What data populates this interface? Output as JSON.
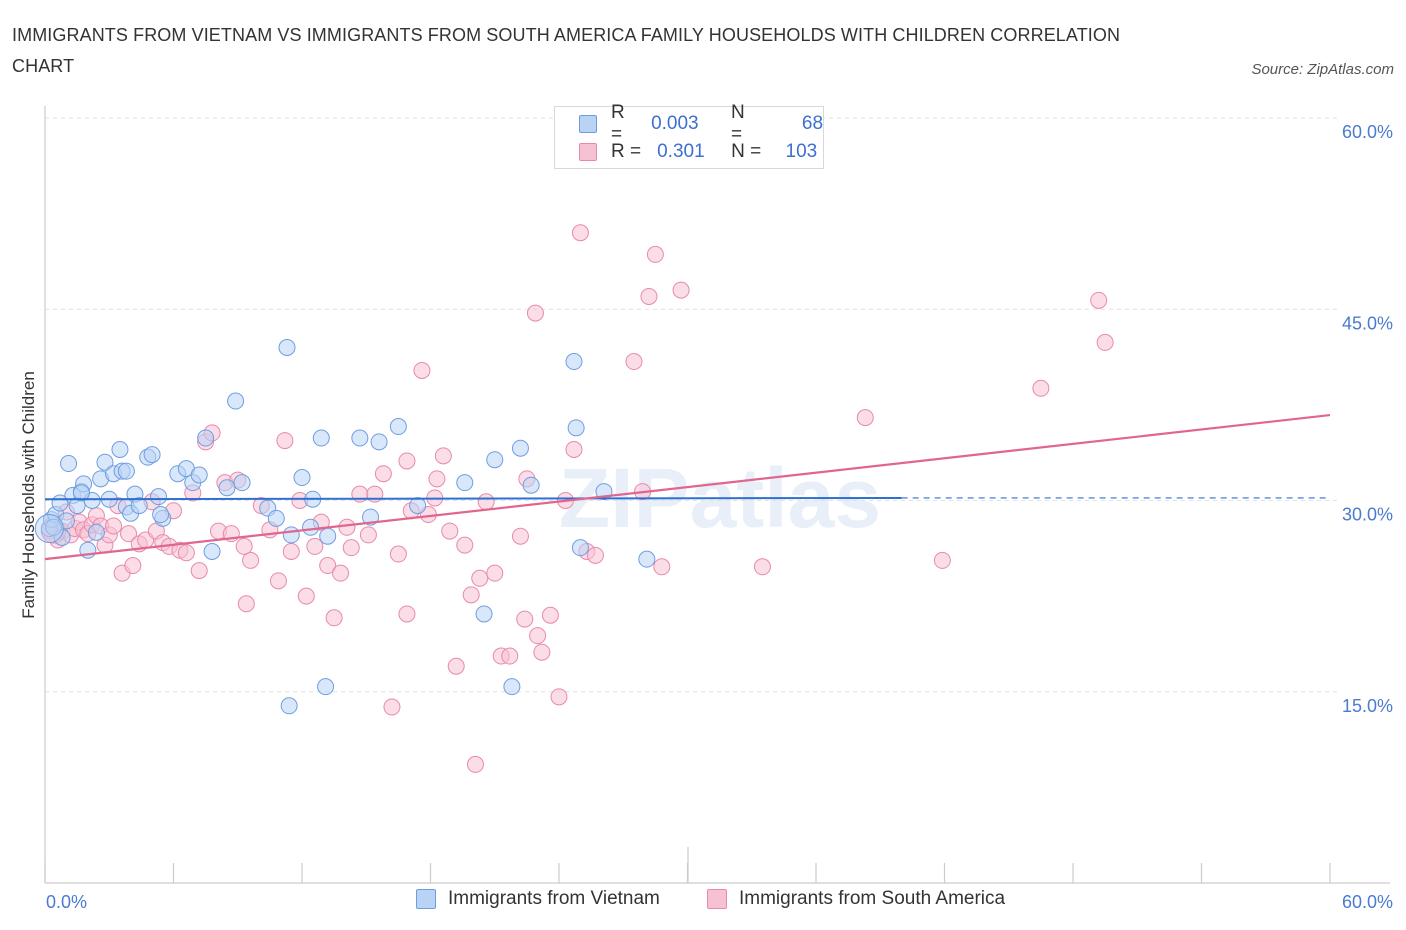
{
  "title": "IMMIGRANTS FROM VIETNAM VS IMMIGRANTS FROM SOUTH AMERICA FAMILY HOUSEHOLDS WITH CHILDREN CORRELATION CHART",
  "source": "Source: ZipAtlas.com",
  "watermark": "ZIPatlas",
  "colors": {
    "vietnam_fill": "#b9d3f5",
    "vietnam_stroke": "#6f9ee0",
    "vietnam_line": "#2f6fd0",
    "sa_fill": "#f7c1d4",
    "sa_stroke": "#e88aa9",
    "sa_line": "#e0668e",
    "tick_label": "#4a7bd0",
    "grid": "#e2e2e2"
  },
  "legend": {
    "r_label": "R =",
    "n_label": "N =",
    "vietnam_r": "0.003",
    "vietnam_n": "68",
    "sa_r": "0.301",
    "sa_n": "103"
  },
  "chart_data": {
    "type": "scatter",
    "title": "IMMIGRANTS FROM VIETNAM VS IMMIGRANTS FROM SOUTH AMERICA FAMILY HOUSEHOLDS WITH CHILDREN CORRELATION CHART",
    "xlabel": "",
    "ylabel": "Family Households with Children",
    "xlim": [
      0,
      60
    ],
    "ylim": [
      0,
      60
    ],
    "x_tick_labels": [
      "0.0%",
      "60.0%"
    ],
    "y_ticks": [
      15,
      30,
      45,
      60
    ],
    "y_tick_labels": [
      "15.0%",
      "30.0%",
      "45.0%",
      "60.0%"
    ],
    "grid": true,
    "legend_position": "top-center",
    "series": [
      {
        "name": "Immigrants from Vietnam",
        "r": 0.003,
        "n": 68,
        "trend": {
          "x0": 0,
          "y0": 30.1,
          "x1": 40,
          "y1": 30.2,
          "dashed_to_x": 60
        },
        "points": [
          [
            0.2,
            27.8
          ],
          [
            0.3,
            28.5
          ],
          [
            0.5,
            28.9
          ],
          [
            0.7,
            29.8
          ],
          [
            0.8,
            27.1
          ],
          [
            1.0,
            28.4
          ],
          [
            1.1,
            32.9
          ],
          [
            1.3,
            30.4
          ],
          [
            1.5,
            29.6
          ],
          [
            1.7,
            30.7
          ],
          [
            1.8,
            31.3
          ],
          [
            2.0,
            26.1
          ],
          [
            2.2,
            30.0
          ],
          [
            2.4,
            27.5
          ],
          [
            2.6,
            31.7
          ],
          [
            2.8,
            33.0
          ],
          [
            3.0,
            30.1
          ],
          [
            3.2,
            32.1
          ],
          [
            3.5,
            34.0
          ],
          [
            3.6,
            32.3
          ],
          [
            3.8,
            29.5
          ],
          [
            4.0,
            29.0
          ],
          [
            4.2,
            30.5
          ],
          [
            4.4,
            29.6
          ],
          [
            4.8,
            33.4
          ],
          [
            5.0,
            33.6
          ],
          [
            5.3,
            30.3
          ],
          [
            5.5,
            28.6
          ],
          [
            6.2,
            32.1
          ],
          [
            6.6,
            32.5
          ],
          [
            6.9,
            31.4
          ],
          [
            7.2,
            32.0
          ],
          [
            7.5,
            34.9
          ],
          [
            7.8,
            26.0
          ],
          [
            8.5,
            31.0
          ],
          [
            8.9,
            37.8
          ],
          [
            9.2,
            31.4
          ],
          [
            10.4,
            29.4
          ],
          [
            10.8,
            28.6
          ],
          [
            11.5,
            27.3
          ],
          [
            12.0,
            31.8
          ],
          [
            12.4,
            27.9
          ],
          [
            12.5,
            30.1
          ],
          [
            12.9,
            34.9
          ],
          [
            13.2,
            27.2
          ],
          [
            14.7,
            34.9
          ],
          [
            15.2,
            28.7
          ],
          [
            15.6,
            34.6
          ],
          [
            16.5,
            35.8
          ],
          [
            17.4,
            29.6
          ],
          [
            19.6,
            31.4
          ],
          [
            20.5,
            21.1
          ],
          [
            21.0,
            33.2
          ],
          [
            22.7,
            31.2
          ],
          [
            22.2,
            34.1
          ],
          [
            24.7,
            40.9
          ],
          [
            24.8,
            35.7
          ],
          [
            25.0,
            26.3
          ],
          [
            26.1,
            30.7
          ],
          [
            28.1,
            25.4
          ],
          [
            11.3,
            42.0
          ],
          [
            11.4,
            13.9
          ],
          [
            13.1,
            15.4
          ],
          [
            21.8,
            15.4
          ],
          [
            3.8,
            32.3
          ],
          [
            1.7,
            30.6
          ],
          [
            0.4,
            27.9
          ],
          [
            5.4,
            28.9
          ]
        ]
      },
      {
        "name": "Immigrants from South America",
        "r": 0.301,
        "n": 103,
        "trend": {
          "x0": 0,
          "y0": 25.4,
          "x1": 60,
          "y1": 36.7
        },
        "points": [
          [
            0.2,
            27.6
          ],
          [
            0.4,
            28.2
          ],
          [
            0.6,
            26.9
          ],
          [
            0.8,
            27.6
          ],
          [
            1.0,
            29.1
          ],
          [
            1.2,
            27.3
          ],
          [
            1.4,
            27.8
          ],
          [
            1.6,
            28.3
          ],
          [
            1.8,
            27.7
          ],
          [
            2.0,
            27.4
          ],
          [
            2.2,
            28.1
          ],
          [
            2.4,
            28.8
          ],
          [
            2.6,
            28.0
          ],
          [
            2.8,
            26.5
          ],
          [
            3.0,
            27.3
          ],
          [
            3.2,
            28.0
          ],
          [
            3.4,
            29.6
          ],
          [
            3.6,
            24.3
          ],
          [
            3.9,
            27.4
          ],
          [
            4.1,
            24.9
          ],
          [
            4.4,
            26.6
          ],
          [
            4.7,
            26.9
          ],
          [
            5.0,
            29.9
          ],
          [
            5.2,
            27.6
          ],
          [
            5.5,
            26.7
          ],
          [
            5.8,
            26.4
          ],
          [
            6.0,
            29.2
          ],
          [
            6.3,
            26.1
          ],
          [
            6.6,
            25.9
          ],
          [
            6.9,
            30.6
          ],
          [
            7.2,
            24.5
          ],
          [
            7.5,
            34.6
          ],
          [
            7.8,
            35.3
          ],
          [
            8.1,
            27.6
          ],
          [
            8.4,
            31.4
          ],
          [
            8.7,
            27.4
          ],
          [
            9.0,
            31.6
          ],
          [
            9.4,
            21.9
          ],
          [
            9.6,
            25.3
          ],
          [
            10.1,
            29.6
          ],
          [
            10.5,
            27.7
          ],
          [
            10.9,
            23.7
          ],
          [
            11.2,
            34.7
          ],
          [
            11.5,
            26.0
          ],
          [
            11.9,
            30.0
          ],
          [
            12.2,
            22.5
          ],
          [
            12.6,
            26.4
          ],
          [
            12.9,
            28.3
          ],
          [
            13.2,
            24.9
          ],
          [
            13.5,
            20.8
          ],
          [
            13.8,
            24.3
          ],
          [
            14.3,
            26.3
          ],
          [
            14.7,
            30.5
          ],
          [
            15.1,
            27.3
          ],
          [
            15.4,
            30.5
          ],
          [
            15.8,
            32.1
          ],
          [
            16.2,
            13.8
          ],
          [
            16.5,
            25.8
          ],
          [
            16.9,
            33.1
          ],
          [
            17.1,
            29.2
          ],
          [
            17.6,
            40.2
          ],
          [
            17.9,
            28.9
          ],
          [
            18.3,
            31.7
          ],
          [
            18.6,
            33.5
          ],
          [
            18.9,
            27.6
          ],
          [
            19.2,
            17.0
          ],
          [
            19.6,
            26.5
          ],
          [
            19.9,
            22.6
          ],
          [
            20.3,
            23.9
          ],
          [
            20.6,
            29.9
          ],
          [
            21.0,
            24.3
          ],
          [
            21.3,
            17.8
          ],
          [
            21.7,
            17.8
          ],
          [
            22.2,
            27.2
          ],
          [
            22.5,
            31.7
          ],
          [
            22.9,
            44.7
          ],
          [
            23.2,
            18.1
          ],
          [
            23.6,
            21.0
          ],
          [
            24.0,
            14.6
          ],
          [
            24.3,
            30.0
          ],
          [
            24.7,
            34.0
          ],
          [
            25.0,
            51.0
          ],
          [
            25.3,
            26.0
          ],
          [
            25.7,
            25.7
          ],
          [
            27.5,
            40.9
          ],
          [
            27.9,
            30.7
          ],
          [
            28.2,
            46.0
          ],
          [
            28.5,
            49.3
          ],
          [
            28.8,
            24.8
          ],
          [
            29.7,
            46.5
          ],
          [
            33.5,
            24.8
          ],
          [
            38.3,
            36.5
          ],
          [
            41.9,
            25.3
          ],
          [
            46.5,
            38.8
          ],
          [
            49.2,
            45.7
          ],
          [
            49.5,
            42.4
          ],
          [
            20.1,
            9.3
          ],
          [
            22.4,
            20.7
          ],
          [
            23.0,
            19.4
          ],
          [
            16.9,
            21.1
          ],
          [
            14.1,
            27.9
          ],
          [
            18.2,
            30.2
          ],
          [
            9.3,
            26.4
          ]
        ]
      }
    ]
  },
  "bottom_legend": {
    "vietnam": "Immigrants from Vietnam",
    "sa": "Immigrants from South America"
  }
}
